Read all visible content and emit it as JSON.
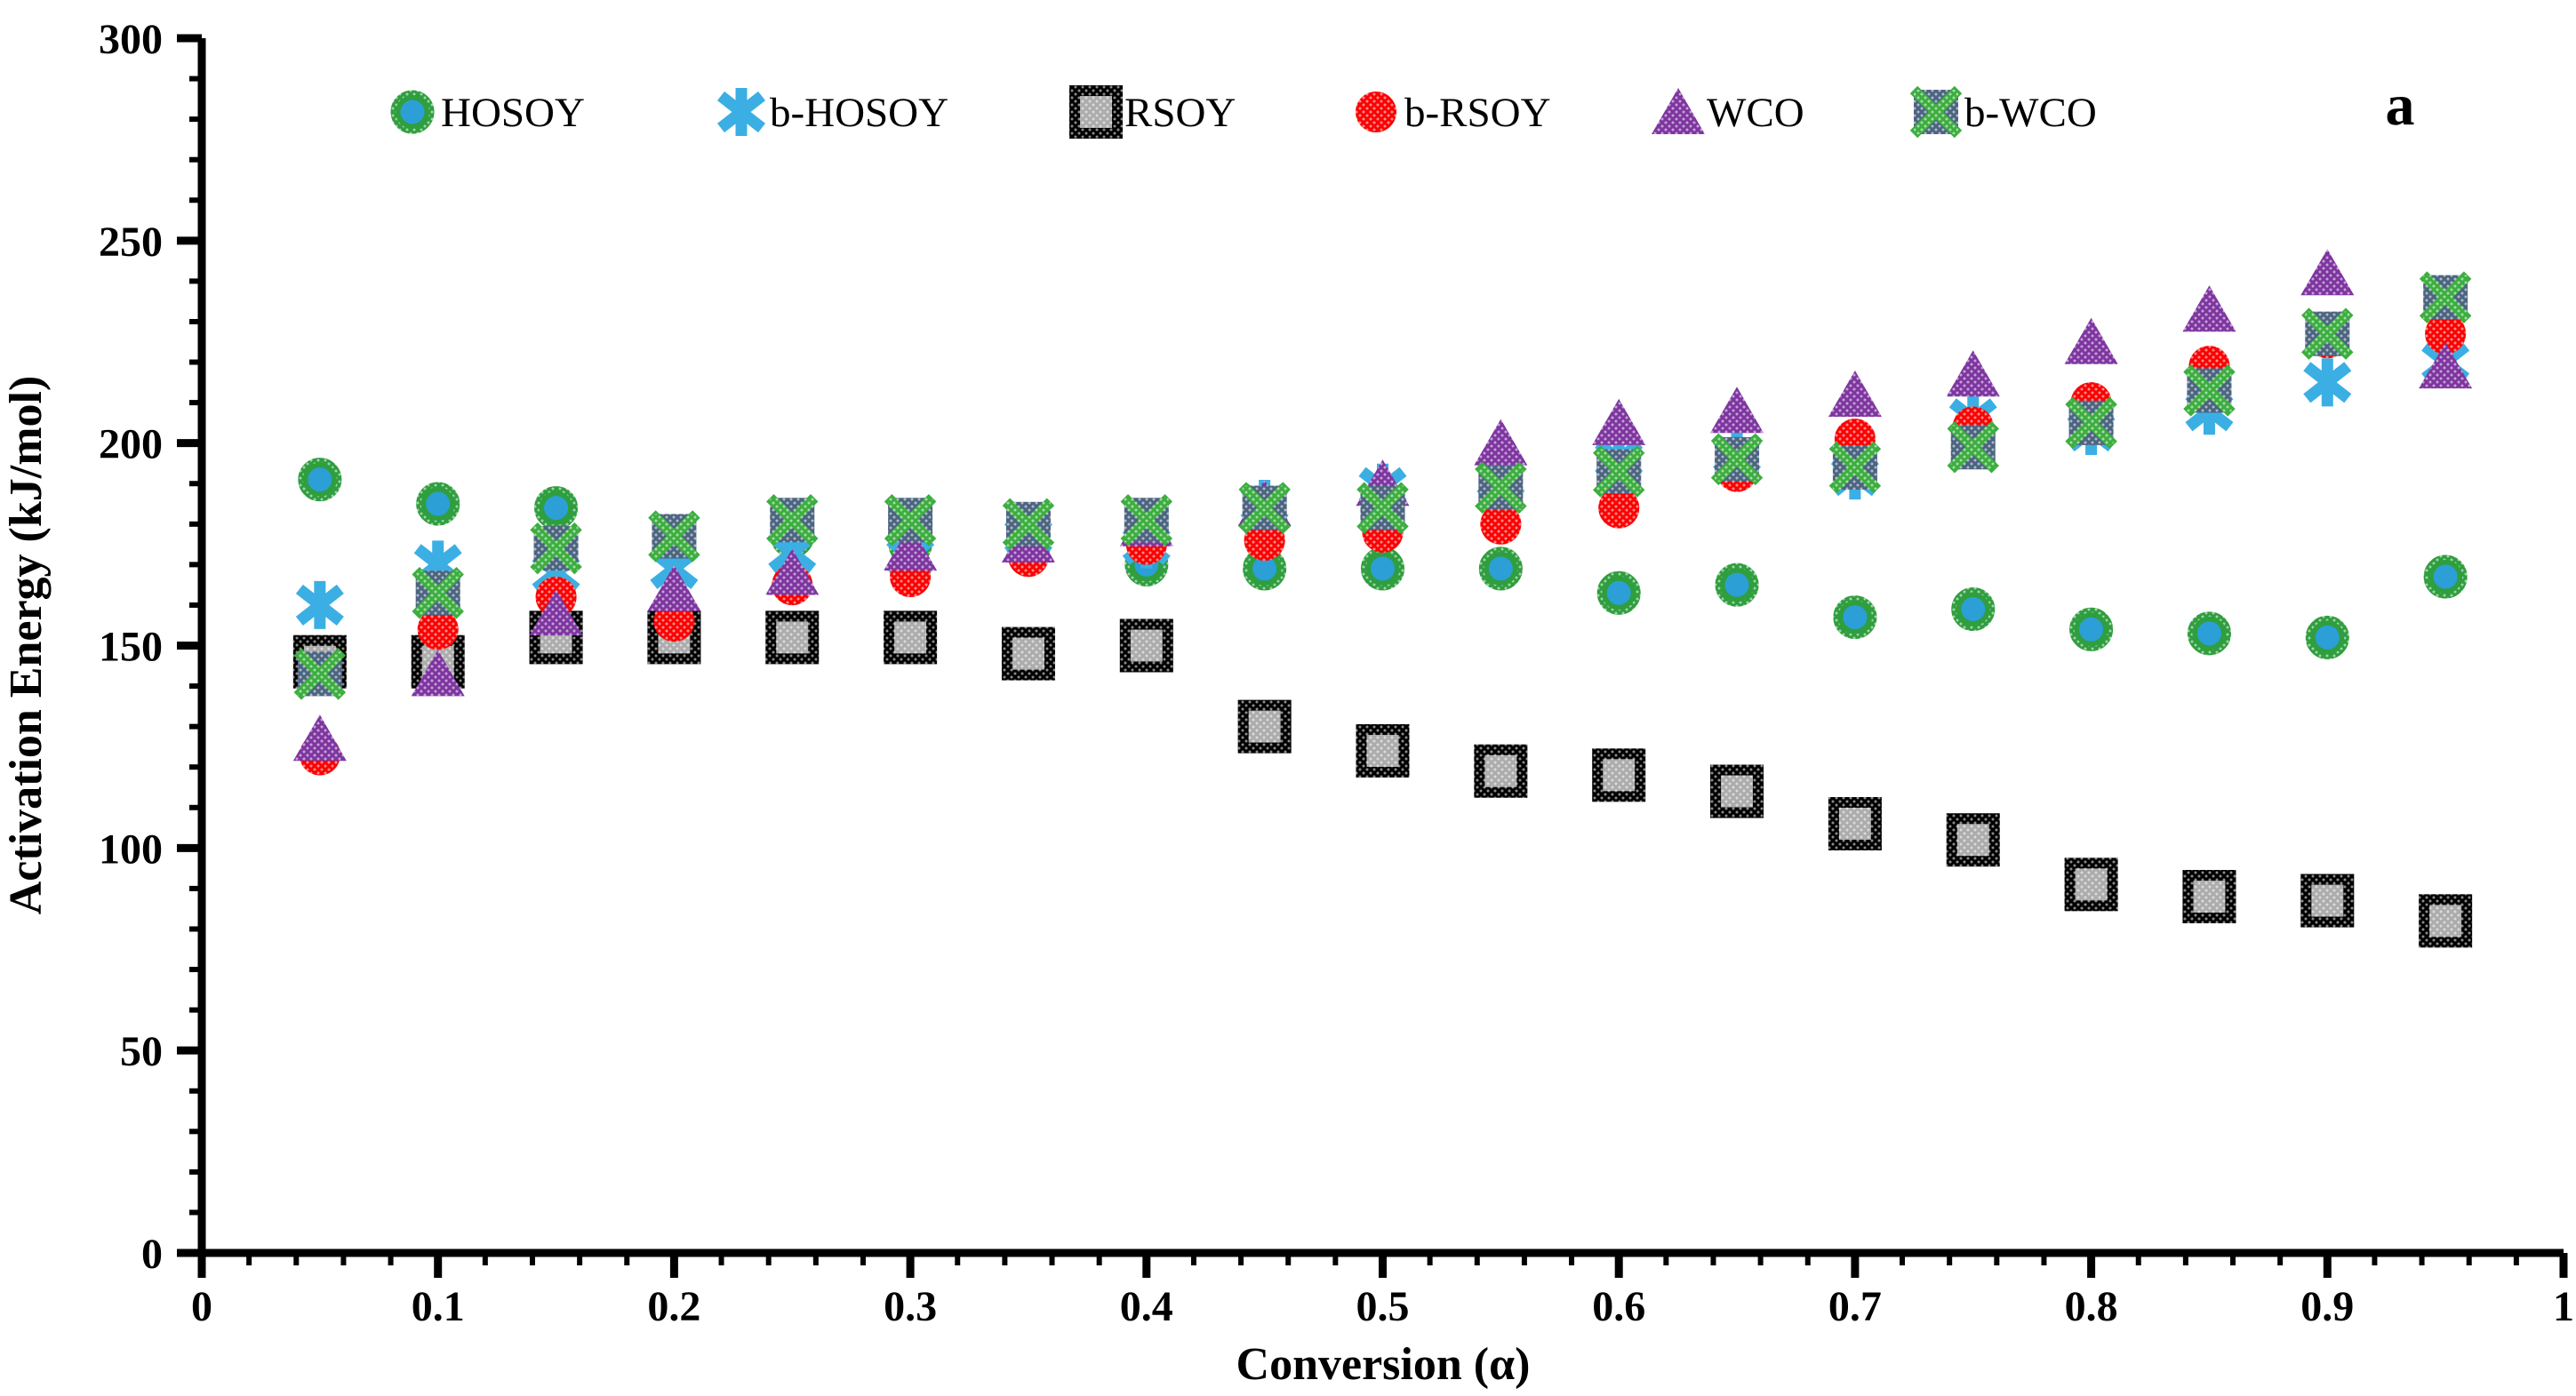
{
  "figure_label": "a",
  "axes": {
    "x": {
      "label": "Conversion (α)",
      "min": 0,
      "max": 1,
      "major_tick": 0.1,
      "minor_tick": 0.02,
      "tick_labels": [
        "0",
        "0.1",
        "0.2",
        "0.3",
        "0.4",
        "0.5",
        "0.6",
        "0.7",
        "0.8",
        "0.9",
        "1"
      ]
    },
    "y": {
      "label": "Activation Energy (kJ/mol)",
      "min": 0,
      "max": 300,
      "major_tick": 50,
      "minor_tick": 10,
      "tick_labels": [
        "0",
        "50",
        "100",
        "150",
        "200",
        "250",
        "300"
      ]
    }
  },
  "legend": {
    "position": "top",
    "items": [
      {
        "label": "HOSOY",
        "series": "HOSOY"
      },
      {
        "label": "b-HOSOY",
        "series": "b-HOSOY"
      },
      {
        "label": "RSOY",
        "series": "RSOY"
      },
      {
        "label": "b-RSOY",
        "series": "b-RSOY"
      },
      {
        "label": "WCO",
        "series": "WCO"
      },
      {
        "label": "b-WCO",
        "series": "b-WCO"
      }
    ]
  },
  "colors": {
    "hosoy_fill": "#2b9fd6",
    "hosoy_ring": "#2f9e3e",
    "bhosoy": "#3bafe3",
    "rsoy_fill": "#acacac",
    "rsoy_border": "#000000",
    "brsoy": "#fb0303",
    "wco": "#7e35a0",
    "bwco_fill": "#4b6480",
    "bwco_x": "#3cae3f",
    "axis": "#000000"
  },
  "chart_data": {
    "type": "scatter",
    "x": [
      0.05,
      0.1,
      0.15,
      0.2,
      0.25,
      0.3,
      0.35,
      0.4,
      0.45,
      0.5,
      0.55,
      0.6,
      0.65,
      0.7,
      0.75,
      0.8,
      0.85,
      0.9,
      0.95
    ],
    "series": [
      {
        "name": "HOSOY",
        "marker": "circle-ring",
        "values": [
          191,
          185,
          184,
          177,
          177,
          175,
          174,
          170,
          169,
          169,
          169,
          163,
          165,
          157,
          159,
          154,
          153,
          152,
          167
        ]
      },
      {
        "name": "b-HOSOY",
        "marker": "asterisk",
        "values": [
          160,
          170,
          168,
          169,
          173,
          172,
          177,
          175,
          185,
          189,
          191,
          196,
          197,
          192,
          206,
          203,
          208,
          215,
          220
        ]
      },
      {
        "name": "RSOY",
        "marker": "square",
        "values": [
          146,
          146,
          152,
          152,
          152,
          152,
          148,
          150,
          130,
          124,
          119,
          118,
          114,
          106,
          102,
          91,
          88,
          87,
          82
        ]
      },
      {
        "name": "b-RSOY",
        "marker": "circle",
        "values": [
          123,
          154,
          162,
          156,
          165,
          167,
          172,
          175,
          176,
          178,
          180,
          184,
          193,
          201,
          204,
          210,
          219,
          226,
          227
        ]
      },
      {
        "name": "WCO",
        "marker": "triangle",
        "values": [
          127,
          143,
          158,
          164,
          168,
          174,
          176,
          180,
          185,
          190,
          200,
          205,
          208,
          212,
          217,
          225,
          233,
          242,
          219
        ]
      },
      {
        "name": "b-WCO",
        "marker": "square-x",
        "values": [
          143,
          163,
          174,
          177,
          181,
          181,
          180,
          181,
          184,
          184,
          189,
          193,
          196,
          194,
          199,
          205,
          213,
          227,
          236
        ]
      }
    ],
    "title": "",
    "xlabel": "Conversion (α)",
    "ylabel": "Activation Energy (kJ/mol)",
    "xlim": [
      0,
      1
    ],
    "ylim": [
      0,
      300
    ],
    "grid": false,
    "legend_position": "top"
  }
}
